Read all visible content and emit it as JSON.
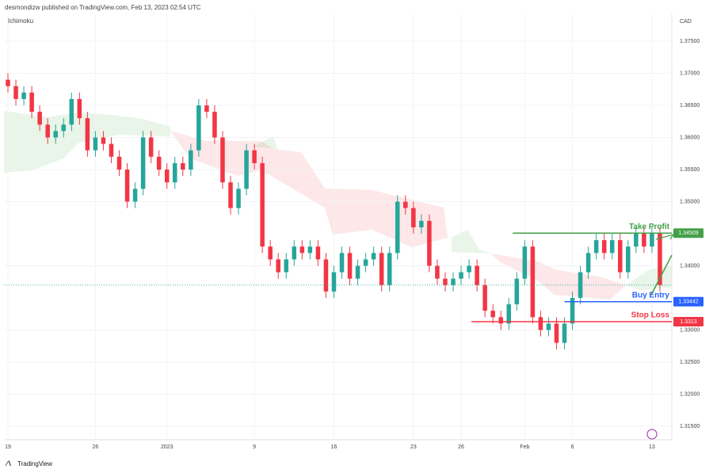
{
  "header": {
    "publisher": "desmondizw published on TradingView.com, Feb 13, 2023 02:54 UTC",
    "indicator": "Ichimoku",
    "currency": "CAD",
    "brand": "TradingView"
  },
  "chart_data": {
    "type": "candlestick",
    "up_color": "#26a69a",
    "down_color": "#f23645",
    "open": [
      1.369,
      1.368,
      1.366,
      1.367,
      1.364,
      1.362,
      1.36,
      1.361,
      1.362,
      1.366,
      1.363,
      1.358,
      1.36,
      1.359,
      1.357,
      1.355,
      1.35,
      1.352,
      1.36,
      1.357,
      1.355,
      1.353,
      1.356,
      1.355,
      1.358,
      1.365,
      1.364,
      1.36,
      1.353,
      1.349,
      1.352,
      1.358,
      1.356,
      1.343,
      1.341,
      1.339,
      1.341,
      1.343,
      1.342,
      1.343,
      1.341,
      1.336,
      1.339,
      1.342,
      1.338,
      1.34,
      1.341,
      1.342,
      1.337,
      1.342,
      1.35,
      1.349,
      1.346,
      1.347,
      1.34,
      1.338,
      1.337,
      1.338,
      1.339,
      1.34,
      1.337,
      1.333,
      1.332,
      1.331,
      1.334,
      1.338,
      1.343,
      1.332,
      1.33,
      1.331,
      1.328,
      1.331,
      1.335,
      1.339,
      1.342,
      1.344,
      1.342,
      1.344,
      1.339,
      1.343,
      1.345,
      1.343,
      1.345
    ],
    "high": [
      1.37,
      1.369,
      1.368,
      1.368,
      1.365,
      1.363,
      1.362,
      1.363,
      1.367,
      1.367,
      1.364,
      1.361,
      1.361,
      1.36,
      1.358,
      1.356,
      1.353,
      1.361,
      1.361,
      1.358,
      1.356,
      1.357,
      1.357,
      1.359,
      1.366,
      1.366,
      1.365,
      1.361,
      1.354,
      1.353,
      1.359,
      1.359,
      1.357,
      1.344,
      1.342,
      1.342,
      1.344,
      1.344,
      1.344,
      1.344,
      1.342,
      1.34,
      1.343,
      1.343,
      1.341,
      1.342,
      1.343,
      1.343,
      1.343,
      1.351,
      1.351,
      1.35,
      1.348,
      1.348,
      1.341,
      1.339,
      1.339,
      1.34,
      1.341,
      1.341,
      1.338,
      1.334,
      1.333,
      1.335,
      1.339,
      1.344,
      1.344,
      1.333,
      1.332,
      1.332,
      1.332,
      1.336,
      1.34,
      1.343,
      1.345,
      1.345,
      1.345,
      1.345,
      1.344,
      1.346,
      1.346,
      1.346,
      1.346
    ],
    "low": [
      1.367,
      1.365,
      1.365,
      1.363,
      1.361,
      1.359,
      1.359,
      1.36,
      1.361,
      1.362,
      1.357,
      1.357,
      1.358,
      1.356,
      1.354,
      1.349,
      1.349,
      1.351,
      1.356,
      1.354,
      1.352,
      1.352,
      1.354,
      1.354,
      1.357,
      1.363,
      1.359,
      1.352,
      1.348,
      1.348,
      1.351,
      1.355,
      1.342,
      1.34,
      1.338,
      1.338,
      1.34,
      1.341,
      1.341,
      1.34,
      1.335,
      1.335,
      1.338,
      1.337,
      1.337,
      1.339,
      1.34,
      1.336,
      1.336,
      1.341,
      1.348,
      1.345,
      1.345,
      1.339,
      1.337,
      1.336,
      1.336,
      1.337,
      1.338,
      1.336,
      1.332,
      1.331,
      1.33,
      1.33,
      1.333,
      1.337,
      1.331,
      1.329,
      1.329,
      1.327,
      1.327,
      1.33,
      1.334,
      1.338,
      1.341,
      1.341,
      1.341,
      1.338,
      1.338,
      1.342,
      1.342,
      1.342,
      1.336
    ],
    "close": [
      1.368,
      1.366,
      1.367,
      1.364,
      1.362,
      1.36,
      1.361,
      1.362,
      1.366,
      1.363,
      1.358,
      1.36,
      1.359,
      1.357,
      1.355,
      1.35,
      1.352,
      1.36,
      1.357,
      1.355,
      1.353,
      1.356,
      1.355,
      1.358,
      1.365,
      1.364,
      1.36,
      1.353,
      1.349,
      1.352,
      1.358,
      1.356,
      1.343,
      1.341,
      1.339,
      1.341,
      1.343,
      1.342,
      1.343,
      1.341,
      1.336,
      1.339,
      1.342,
      1.338,
      1.34,
      1.341,
      1.342,
      1.337,
      1.342,
      1.35,
      1.349,
      1.346,
      1.347,
      1.34,
      1.338,
      1.337,
      1.338,
      1.339,
      1.34,
      1.337,
      1.333,
      1.332,
      1.331,
      1.334,
      1.338,
      1.343,
      1.332,
      1.33,
      1.331,
      1.328,
      1.331,
      1.335,
      1.339,
      1.342,
      1.344,
      1.342,
      1.344,
      1.339,
      1.343,
      1.345,
      1.343,
      1.345,
      1.337
    ],
    "xlim": [
      -0.5,
      83.5
    ],
    "xticks": [
      {
        "value": 0,
        "label": "19"
      },
      {
        "value": 11,
        "label": "26"
      },
      {
        "value": 20,
        "label": "2023"
      },
      {
        "value": 31,
        "label": "9"
      },
      {
        "value": 41,
        "label": "16"
      },
      {
        "value": 51,
        "label": "23"
      },
      {
        "value": 57,
        "label": "26"
      },
      {
        "value": 65,
        "label": "Feb"
      },
      {
        "value": 71,
        "label": "6"
      },
      {
        "value": 81,
        "label": "13"
      }
    ],
    "ylim": [
      1.3129,
      1.3792
    ],
    "yticks": [
      {
        "value": 1.375,
        "label": "1.37500"
      },
      {
        "value": 1.37,
        "label": "1.37000"
      },
      {
        "value": 1.365,
        "label": "1.36500"
      },
      {
        "value": 1.36,
        "label": "1.36000"
      },
      {
        "value": 1.355,
        "label": "1.35500"
      },
      {
        "value": 1.35,
        "label": "1.35000"
      },
      {
        "value": 1.34,
        "label": "1.34000"
      },
      {
        "value": 1.33,
        "label": "1.33000"
      },
      {
        "value": 1.325,
        "label": "1.32500"
      },
      {
        "value": 1.32,
        "label": "1.32000"
      },
      {
        "value": 1.315,
        "label": "1.31500"
      }
    ],
    "grid": true,
    "levels": [
      {
        "name": "Take Profit",
        "value": 1.34509,
        "color": "#43a047"
      },
      {
        "name": "Buy Entry",
        "value": 1.33442,
        "color": "#2962ff"
      },
      {
        "name": "Stop Loss",
        "value": 1.3313,
        "color": "#f23645"
      }
    ]
  }
}
